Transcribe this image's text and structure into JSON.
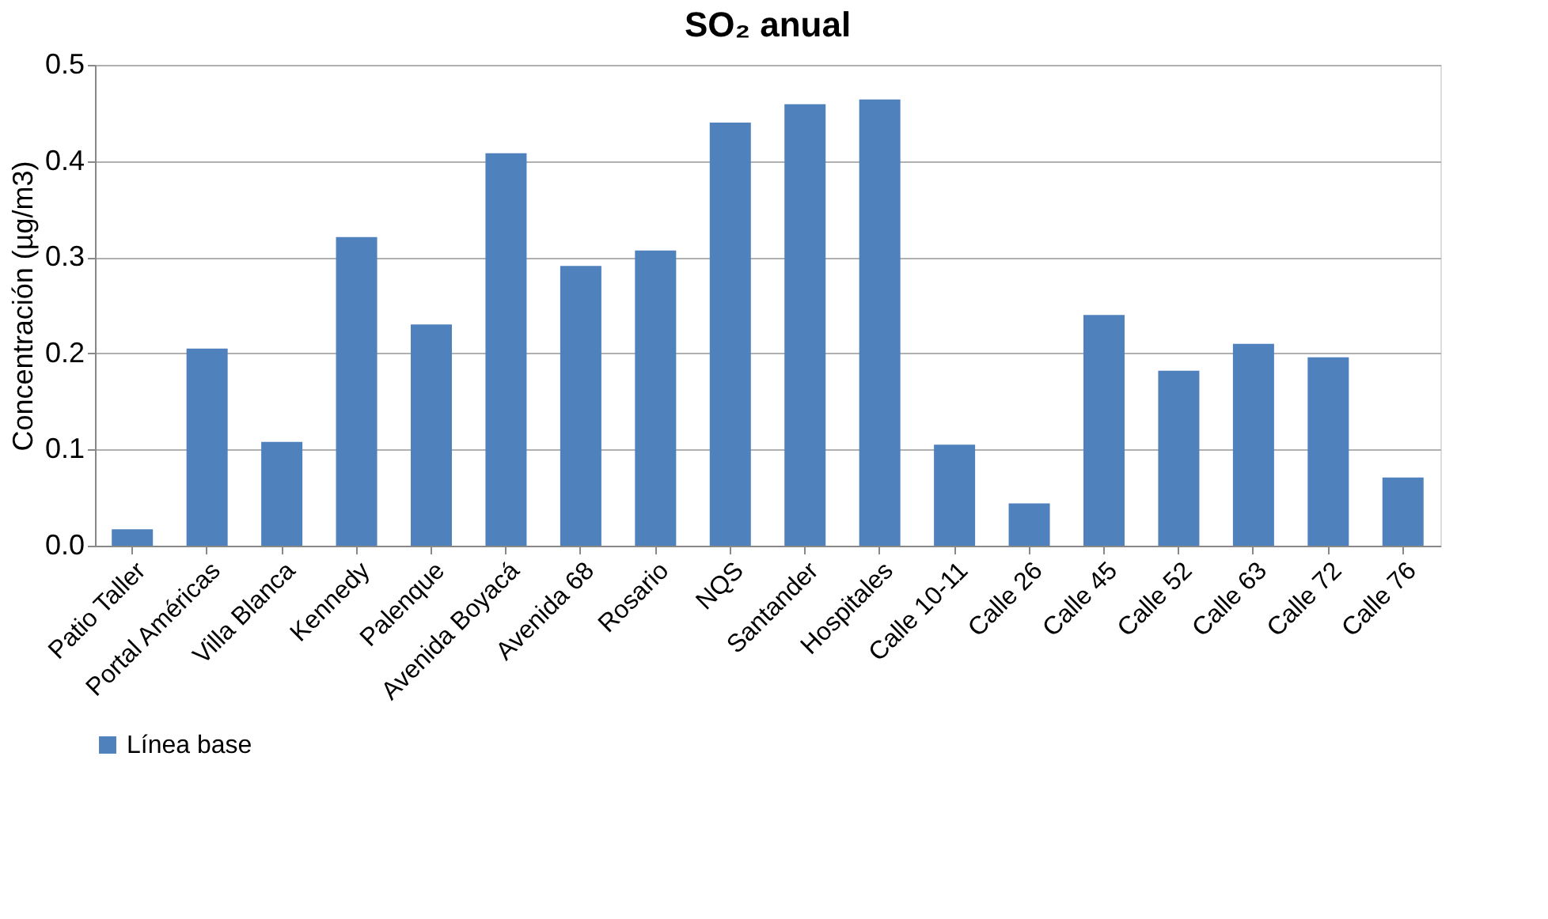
{
  "chart_data": {
    "type": "bar",
    "title": "SO₂ anual",
    "ylabel": "Concentración  (µg/m3)",
    "categories": [
      "Patio Taller",
      "Portal Américas",
      "Villa Blanca",
      "Kennedy",
      "Palenque",
      "Avenida Boyacá",
      "Avenida 68",
      "Rosario",
      "NQS",
      "Santander",
      "Hospitales",
      "Calle 10-11",
      "Calle 26",
      "Calle 45",
      "Calle 52",
      "Calle 63",
      "Calle 72",
      "Calle 76"
    ],
    "series": [
      {
        "name": "Línea base",
        "color": "#4f81bd",
        "values": [
          0.017,
          0.205,
          0.108,
          0.321,
          0.23,
          0.408,
          0.291,
          0.307,
          0.44,
          0.459,
          0.464,
          0.105,
          0.044,
          0.24,
          0.182,
          0.21,
          0.196,
          0.071
        ]
      }
    ],
    "ylim": [
      0,
      0.5
    ],
    "yticks": [
      {
        "value": 0,
        "label": "0.0"
      },
      0.1,
      0.2,
      0.3,
      0.4,
      0.5
    ],
    "grid": "y",
    "legend": "bottom"
  }
}
